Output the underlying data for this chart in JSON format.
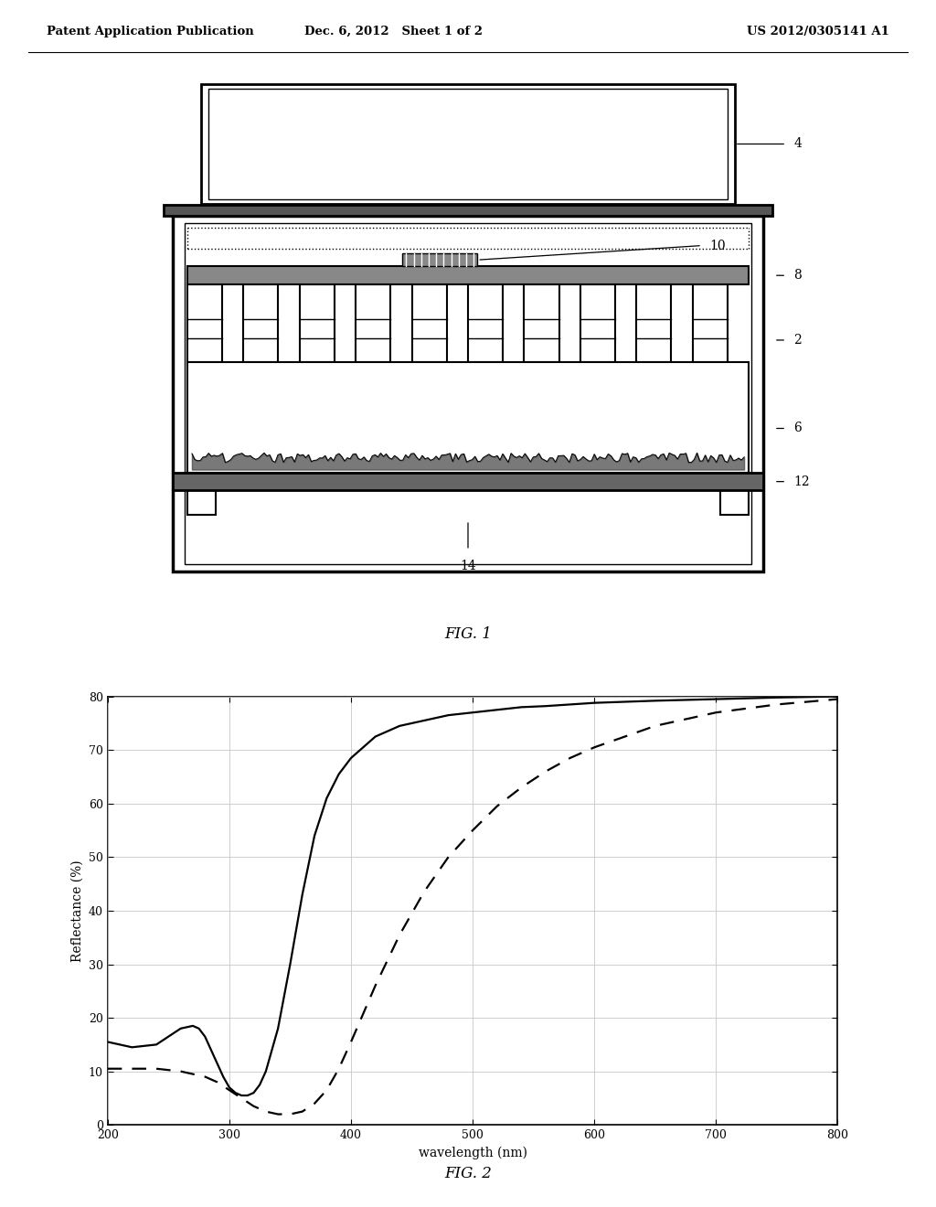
{
  "header_left": "Patent Application Publication",
  "header_mid": "Dec. 6, 2012   Sheet 1 of 2",
  "header_right": "US 2012/0305141 A1",
  "graph_xlabel": "wavelength (nm)",
  "graph_ylabel": "Reflectance (%)",
  "graph_xlim": [
    200,
    800
  ],
  "graph_ylim": [
    0,
    80
  ],
  "graph_xticks": [
    200,
    300,
    400,
    500,
    600,
    700,
    800
  ],
  "graph_yticks": [
    0,
    10,
    20,
    30,
    40,
    50,
    60,
    70,
    80
  ],
  "solid_curve_x": [
    200,
    220,
    240,
    250,
    260,
    270,
    275,
    280,
    285,
    290,
    295,
    300,
    305,
    310,
    315,
    320,
    325,
    330,
    340,
    350,
    360,
    370,
    380,
    390,
    400,
    420,
    440,
    460,
    480,
    500,
    520,
    540,
    560,
    580,
    600,
    650,
    700,
    750,
    800
  ],
  "solid_curve_y": [
    15.5,
    14.5,
    15.0,
    16.5,
    18.0,
    18.5,
    18.0,
    16.5,
    14.0,
    11.5,
    9.0,
    7.0,
    6.0,
    5.5,
    5.5,
    6.0,
    7.5,
    10.0,
    18.0,
    30.0,
    43.0,
    54.0,
    61.0,
    65.5,
    68.5,
    72.5,
    74.5,
    75.5,
    76.5,
    77.0,
    77.5,
    78.0,
    78.2,
    78.5,
    78.8,
    79.2,
    79.5,
    79.8,
    80.0
  ],
  "dashed_curve_x": [
    200,
    220,
    240,
    260,
    270,
    280,
    290,
    300,
    310,
    320,
    330,
    340,
    350,
    360,
    370,
    380,
    390,
    400,
    420,
    440,
    460,
    480,
    500,
    520,
    540,
    560,
    580,
    600,
    650,
    700,
    750,
    800
  ],
  "dashed_curve_y": [
    10.5,
    10.5,
    10.5,
    10.0,
    9.5,
    9.0,
    8.0,
    6.5,
    5.0,
    3.5,
    2.5,
    2.0,
    2.0,
    2.5,
    4.0,
    6.5,
    10.5,
    15.5,
    26.0,
    35.5,
    43.5,
    50.0,
    55.0,
    59.5,
    63.0,
    66.0,
    68.5,
    70.5,
    74.5,
    77.0,
    78.5,
    79.5
  ],
  "background_color": "#ffffff",
  "line_color": "#000000",
  "grid_color": "#c8c8c8"
}
